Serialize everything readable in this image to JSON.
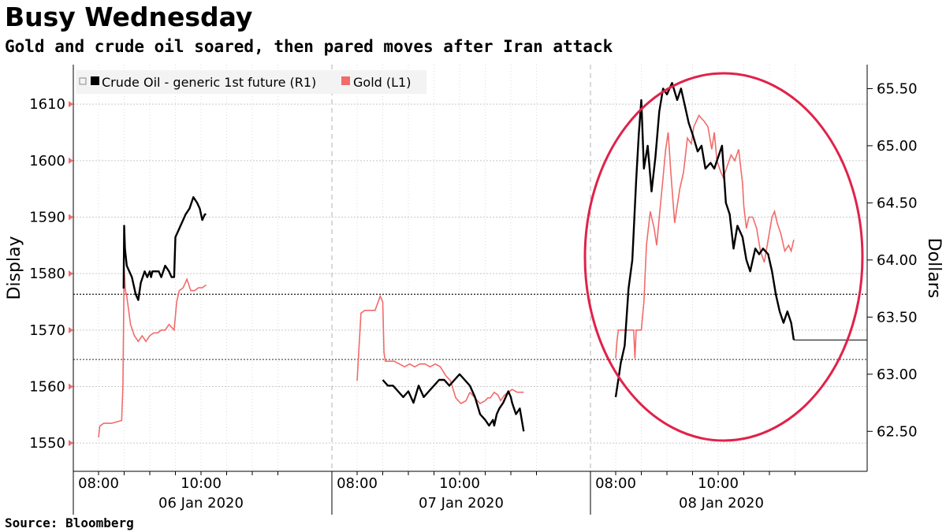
{
  "title": "Busy Wednesday",
  "subtitle": "Gold and crude oil soared, then pared moves after Iran attack",
  "source": "Source:  Bloomberg",
  "colors": {
    "crude": "#000000",
    "gold": "#f26b6b",
    "circle": "#e0224a",
    "grid": "#c8c8c8"
  },
  "chart_data": {
    "type": "line",
    "title": "Busy Wednesday",
    "left_axis": {
      "label": "Display",
      "range": [
        1545,
        1617
      ],
      "ticks": [
        1550,
        1560,
        1570,
        1580,
        1590,
        1600,
        1610
      ]
    },
    "right_axis": {
      "label": "Dollars",
      "range": [
        62.15,
        65.71
      ],
      "ticks": [
        62.5,
        63.0,
        63.5,
        64.0,
        64.5,
        65.0,
        65.5
      ],
      "tick_labels": [
        "62.50",
        "63.00",
        "63.50",
        "64.00",
        "64.50",
        "65.00",
        "65.50"
      ]
    },
    "x_tick_labels": [
      "08:00",
      "10:00",
      "08:00",
      "10:00",
      "08:00",
      "10:00"
    ],
    "day_labels": [
      "06 Jan 2020",
      "07 Jan 2020",
      "08 Jan 2020"
    ],
    "legend": [
      {
        "name": "Crude Oil - generic 1st future (R1)",
        "axis": "right"
      },
      {
        "name": "Gold (L1)",
        "axis": "left"
      }
    ],
    "reference_lines": [
      {
        "series": "Crude Oil",
        "value": 63.7
      },
      {
        "series": "Gold",
        "value": 1564.8
      }
    ],
    "annotation": "circle around 08 Jan 2020 price spike",
    "series": [
      {
        "name": "Crude Oil - generic 1st future (R1)",
        "axis": "right",
        "segments": [
          {
            "t": [
              0.98,
              1.0,
              1.03,
              1.1,
              1.2,
              1.3,
              1.45,
              1.55,
              1.65,
              1.8,
              1.9,
              2.0,
              2.05,
              2.1,
              2.2,
              2.35,
              2.45,
              2.6,
              2.75,
              2.85,
              2.95,
              3.0,
              3.1,
              3.2,
              3.3,
              3.4,
              3.55,
              3.7,
              3.85,
              3.95,
              4.05,
              4.15,
              4.2
            ],
            "v": [
              63.75,
              64.3,
              64.1,
              63.95,
              63.9,
              63.85,
              63.7,
              63.65,
              63.8,
              63.9,
              63.85,
              63.9,
              63.85,
              63.9,
              63.9,
              63.9,
              63.85,
              63.95,
              63.9,
              63.85,
              63.85,
              64.2,
              64.25,
              64.3,
              64.35,
              64.4,
              64.45,
              64.55,
              64.5,
              64.45,
              64.35,
              64.4,
              64.4
            ]
          },
          {
            "t": [
              1.0,
              1.2,
              1.4,
              1.6,
              1.8,
              2.0,
              2.2,
              2.4,
              2.6,
              2.8,
              3.0,
              3.2,
              3.4,
              3.6,
              3.8,
              4.0,
              4.2,
              4.4
            ],
            "v": [
              62.95,
              62.9,
              62.9,
              62.85,
              62.8,
              62.85,
              62.75,
              62.9,
              62.8,
              62.85,
              62.9,
              62.95,
              62.95,
              62.9,
              62.95,
              63.0,
              62.95,
              62.9
            ]
          },
          {
            "t": [
              4.4,
              4.6,
              4.8,
              5.0,
              5.15,
              5.3,
              5.35,
              5.45,
              5.55,
              5.7,
              5.9,
              6.0,
              6.05,
              6.2,
              6.35,
              6.5
            ],
            "v": [
              62.9,
              62.8,
              62.65,
              62.6,
              62.55,
              62.6,
              62.55,
              62.65,
              62.7,
              62.75,
              62.85,
              62.8,
              62.75,
              62.65,
              62.7,
              62.5
            ]
          }
        ]
      },
      {
        "name": "Gold (L1)",
        "axis": "left",
        "segments": [
          {
            "t": [
              0.0,
              0.05,
              0.2,
              0.5,
              0.9,
              0.95,
              1.0,
              1.05,
              1.1,
              1.25,
              1.4,
              1.55,
              1.7,
              1.85,
              2.0,
              2.15,
              2.3,
              2.45,
              2.6,
              2.75,
              2.95,
              3.05,
              3.15,
              3.3,
              3.45,
              3.6,
              3.75,
              3.9,
              4.05,
              4.2
            ],
            "v": [
              1551,
              1553,
              1553.5,
              1553.5,
              1554,
              1560,
              1581,
              1577,
              1576,
              1571,
              1569,
              1568,
              1569,
              1568,
              1569,
              1569.5,
              1569.5,
              1570,
              1570,
              1571,
              1570,
              1575,
              1577,
              1577.5,
              1579,
              1577,
              1577,
              1577.5,
              1577.5,
              1578
            ]
          },
          {
            "t": [
              0.0,
              0.15,
              0.3,
              0.5,
              0.7,
              0.9,
              1.0,
              1.05,
              1.1,
              1.25,
              1.45,
              1.65,
              1.85,
              2.05,
              2.25,
              2.45,
              2.65,
              2.85,
              3.05,
              3.25,
              3.45,
              3.65,
              3.85,
              4.05,
              4.25,
              4.4
            ],
            "v": [
              1561,
              1573,
              1573.5,
              1573.5,
              1573.5,
              1576,
              1575,
              1566,
              1564.5,
              1564.5,
              1564.5,
              1564,
              1563.5,
              1564,
              1563.5,
              1564,
              1564,
              1563.5,
              1564,
              1563.5,
              1562,
              1561,
              1558,
              1557,
              1557.5,
              1559
            ]
          },
          {
            "t": [
              4.4,
              4.6,
              4.8,
              5.0,
              5.1,
              5.2,
              5.35,
              5.5,
              5.6,
              5.75,
              5.9,
              6.05,
              6.25,
              6.5
            ],
            "v": [
              1559,
              1558,
              1557,
              1557.5,
              1558,
              1558,
              1559,
              1558.5,
              1557.5,
              1558.5,
              1559,
              1559.5,
              1559,
              1559
            ]
          },
          {
            "t": [
              0.0,
              0.05,
              0.1,
              0.2,
              0.35,
              0.55,
              0.7,
              0.75,
              0.8,
              0.85,
              1.0,
              1.1,
              1.2,
              1.35,
              1.5,
              1.6,
              1.7,
              1.85,
              1.95,
              2.05,
              2.15,
              2.3,
              2.5,
              2.65,
              2.8,
              2.95,
              3.05,
              3.25,
              3.45,
              3.6,
              3.75,
              3.85,
              3.95,
              4.1,
              4.2,
              4.35,
              4.5,
              4.65,
              4.8,
              4.95,
              5.0,
              5.1,
              5.2,
              5.35,
              5.5,
              5.65,
              5.8,
              5.95,
              6.1,
              6.2,
              6.3,
              6.45,
              6.6,
              6.75,
              6.85,
              6.95
            ],
            "v": [
              1565,
              1568,
              1570,
              1570,
              1570,
              1570,
              1570,
              1565,
              1570,
              1570,
              1570,
              1575,
              1585,
              1591,
              1588,
              1585,
              1590,
              1597,
              1602,
              1605,
              1598,
              1589,
              1595,
              1598,
              1604,
              1603,
              1606,
              1608,
              1607,
              1606,
              1602,
              1605,
              1600,
              1598,
              1597,
              1599,
              1601,
              1600,
              1602,
              1596,
              1592,
              1588,
              1590,
              1590,
              1588,
              1584,
              1582,
              1586,
              1590,
              1591,
              1589,
              1587,
              1584,
              1585,
              1584,
              1586
            ]
          }
        ]
      }
    ]
  }
}
